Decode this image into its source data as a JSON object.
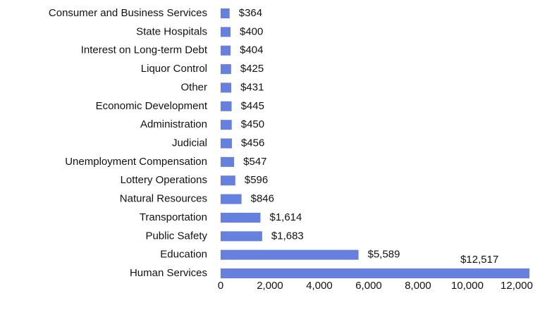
{
  "chart_data": {
    "type": "barh",
    "categories": [
      "Consumer and Business Services",
      "State Hospitals",
      "Interest on Long-term Debt",
      "Liquor Control",
      "Other",
      "Economic Development",
      "Administration",
      "Judicial",
      "Unemployment Compensation",
      "Lottery Operations",
      "Natural Resources",
      "Transportation",
      "Public Safety",
      "Education",
      "Human Services"
    ],
    "values": [
      364,
      400,
      404,
      425,
      431,
      445,
      450,
      456,
      547,
      596,
      846,
      1614,
      1683,
      5589,
      12517
    ],
    "value_labels": [
      "$364",
      "$400",
      "$404",
      "$425",
      "$431",
      "$445",
      "$450",
      "$456",
      "$547",
      "$596",
      "$846",
      "$1,614",
      "$1,683",
      "$5,589",
      "$12,517"
    ],
    "color": "#6680e0",
    "xlim": [
      0,
      12600
    ],
    "xticks": [
      0,
      {
        "value": 2000,
        "label": "2,000"
      },
      {
        "value": 4000,
        "label": "4,000"
      },
      {
        "value": 6000,
        "label": "6,000"
      },
      {
        "value": 8000,
        "label": "8,000"
      },
      {
        "value": 10000,
        "label": "10,000"
      },
      {
        "value": 12000,
        "label": "12,000"
      }
    ]
  }
}
